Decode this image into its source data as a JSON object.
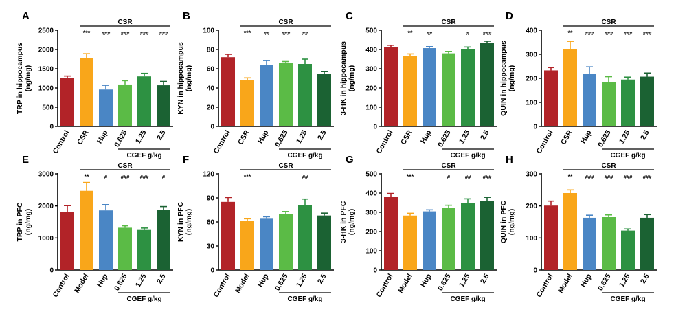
{
  "figure": {
    "colors": {
      "control": "#B22328",
      "model": "#F9A61A",
      "hup": "#4A86C5",
      "dose_0625": "#5BBB46",
      "dose_125": "#2D9142",
      "dose_25": "#1B6233",
      "axis": "#000000"
    }
  },
  "chart_data": [
    {
      "id": "A",
      "type": "bar",
      "ylabel": [
        "TRP in hippocampus",
        "(ng/mg)"
      ],
      "categories": [
        "Control",
        "CSR",
        "Hup",
        "0.625",
        "1.25",
        "2.5"
      ],
      "values": [
        1260,
        1770,
        960,
        1090,
        1300,
        1070
      ],
      "errors": [
        50,
        120,
        110,
        100,
        80,
        100
      ],
      "ylim": [
        0,
        2500
      ],
      "yticks": [
        0,
        500,
        1000,
        1500,
        2000,
        2500
      ],
      "top_label": "CSR",
      "group_label": "CGEF g/kg",
      "significance": [
        "",
        "***",
        "",
        "###",
        "###",
        "###"
      ],
      "hash_over_bars": [
        "",
        "",
        "###",
        "",
        "",
        ""
      ]
    },
    {
      "id": "B",
      "type": "bar",
      "ylabel": [
        "KYN in hippocampus",
        "(ng/mg)"
      ],
      "categories": [
        "Control",
        "CSR",
        "Hup",
        "0.625",
        "1.25",
        "2.5"
      ],
      "values": [
        72,
        48,
        64,
        66,
        65,
        55
      ],
      "errors": [
        3,
        2.5,
        4.5,
        1.5,
        5,
        2
      ],
      "ylim": [
        0,
        100
      ],
      "yticks": [
        0,
        20,
        40,
        60,
        80,
        100
      ],
      "top_label": "CSR",
      "group_label": "CGEF g/kg",
      "significance": [
        "",
        "***",
        "##",
        "###",
        "##",
        ""
      ]
    },
    {
      "id": "C",
      "type": "bar",
      "ylabel": [
        "3-HK in hippocampus",
        "(ng/mg)"
      ],
      "categories": [
        "Control",
        "CSR",
        "Hup",
        "0.625",
        "1.25",
        "2.5"
      ],
      "values": [
        412,
        367,
        407,
        380,
        403,
        433
      ],
      "errors": [
        10,
        10,
        8,
        10,
        10,
        10
      ],
      "ylim": [
        0,
        500
      ],
      "yticks": [
        0,
        100,
        200,
        300,
        400,
        500
      ],
      "top_label": "CSR",
      "group_label": "CGEF g/kg",
      "significance": [
        "",
        "**",
        "##",
        "",
        "#",
        "###"
      ]
    },
    {
      "id": "D",
      "type": "bar",
      "ylabel": [
        "QUIN in hippocampus",
        "(ng/mg)"
      ],
      "categories": [
        "Control",
        "CSR",
        "Hup",
        "0.625",
        "1.25",
        "2.5"
      ],
      "values": [
        233,
        322,
        220,
        185,
        195,
        207
      ],
      "errors": [
        12,
        32,
        28,
        22,
        10,
        15
      ],
      "ylim": [
        0,
        400
      ],
      "yticks": [
        0,
        100,
        200,
        300,
        400
      ],
      "top_label": "CSR",
      "group_label": "CGEF g/kg",
      "significance": [
        "",
        "**",
        "###",
        "###",
        "###",
        "###"
      ]
    },
    {
      "id": "E",
      "type": "bar",
      "ylabel": [
        "TRP in PFC",
        "(ng/mg)"
      ],
      "categories": [
        "Control",
        "Model",
        "Hup",
        "0.625",
        "1.25",
        "2.5"
      ],
      "values": [
        1800,
        2470,
        1860,
        1320,
        1250,
        1870
      ],
      "errors": [
        210,
        260,
        180,
        60,
        60,
        110
      ],
      "ylim": [
        0,
        3000
      ],
      "yticks": [
        0,
        1000,
        2000,
        3000
      ],
      "top_label": "CSR",
      "group_label": "CGEF g/kg",
      "significance": [
        "",
        "**",
        "#",
        "###",
        "###",
        "#"
      ]
    },
    {
      "id": "F",
      "type": "bar",
      "ylabel": [
        "KYN in PFC",
        "(ng/mg)"
      ],
      "categories": [
        "Control",
        "Model",
        "Hup",
        "0.625",
        "1.25",
        "2.5"
      ],
      "values": [
        85,
        61,
        64,
        70,
        81,
        68
      ],
      "errors": [
        5.5,
        3,
        2.5,
        3,
        7.5,
        3
      ],
      "ylim": [
        0,
        120
      ],
      "yticks": [
        0,
        30,
        60,
        90,
        120
      ],
      "top_label": "CSR",
      "group_label": "CGEF g/kg",
      "significance": [
        "",
        "***",
        "",
        "",
        "##",
        ""
      ]
    },
    {
      "id": "G",
      "type": "bar",
      "ylabel": [
        "3-HK in PFC",
        "(ng/mg)"
      ],
      "categories": [
        "Control",
        "Model",
        "Hup",
        "0.625",
        "1.25",
        "2.5"
      ],
      "values": [
        380,
        283,
        305,
        325,
        350,
        360
      ],
      "errors": [
        18,
        12,
        8,
        12,
        20,
        18
      ],
      "ylim": [
        0,
        500
      ],
      "yticks": [
        0,
        100,
        200,
        300,
        400,
        500
      ],
      "top_label": "CSR",
      "group_label": "CGEF g/kg",
      "significance": [
        "",
        "***",
        "",
        "#",
        "##",
        "###"
      ]
    },
    {
      "id": "H",
      "type": "bar",
      "ylabel": [
        "QUIN in PFC",
        "(ng/mg)"
      ],
      "categories": [
        "Control",
        "Model",
        "Hup",
        "0.625",
        "1.25",
        "2.5"
      ],
      "values": [
        201,
        240,
        163,
        165,
        123,
        163
      ],
      "errors": [
        14,
        10,
        8,
        7,
        5,
        10
      ],
      "ylim": [
        0,
        300
      ],
      "yticks": [
        0,
        100,
        200,
        300
      ],
      "top_label": "CSR",
      "group_label": "CGEF g/kg",
      "significance": [
        "",
        "**",
        "###",
        "###",
        "###",
        "###"
      ]
    }
  ]
}
